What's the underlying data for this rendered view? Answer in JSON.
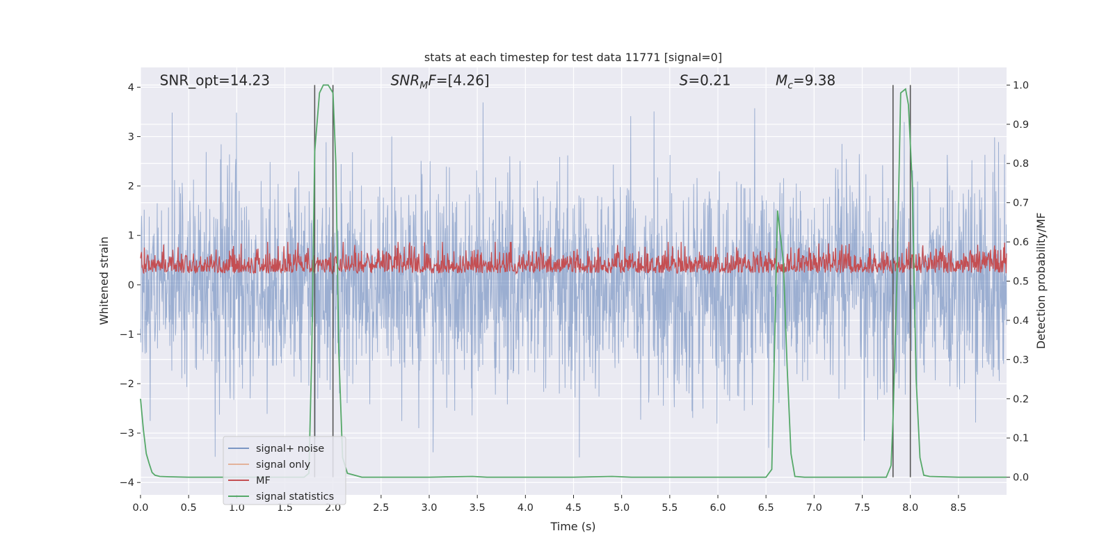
{
  "chart_data": {
    "type": "line",
    "title": "stats at each timestep for test data 11771 [signal=0]",
    "xlabel": "Time (s)",
    "ylabel": "Whitened strain",
    "ylabel_right": "Detection probability/MF",
    "xlim": [
      0.0,
      9.0
    ],
    "ylim": [
      -4.25,
      4.4
    ],
    "ylim_right": [
      -0.045,
      1.045
    ],
    "x_ticks": [
      "0.0",
      "0.5",
      "1.0",
      "1.5",
      "2.0",
      "2.5",
      "3.0",
      "3.5",
      "4.0",
      "4.5",
      "5.0",
      "5.5",
      "6.0",
      "6.5",
      "7.0",
      "7.5",
      "8.0",
      "8.5"
    ],
    "y_ticks": [
      "4",
      "3",
      "2",
      "1",
      "0",
      "−1",
      "−2",
      "−3",
      "−4"
    ],
    "y_ticks_right": [
      "1.0",
      "0.9",
      "0.8",
      "0.7",
      "0.6",
      "0.5",
      "0.4",
      "0.3",
      "0.2",
      "0.1",
      "0.0"
    ],
    "grid": true,
    "legend_position": "lower-left",
    "annotations": [
      {
        "text": "SNR_opt=14.23",
        "x": 0.2,
        "y": 4.1
      },
      {
        "pre": "SNR",
        "sub": "M",
        "post": "F=[4.26]",
        "italic": true,
        "x": 2.6,
        "y": 4.1
      },
      {
        "pre": "S",
        "post": "=0.21",
        "italic_pre": true,
        "x": 5.6,
        "y": 4.1
      },
      {
        "pre": "M",
        "sub": "c",
        "post": "=9.38",
        "italic_pre": true,
        "x": 6.6,
        "y": 4.1
      }
    ],
    "vertical_lines": [
      1.81,
      2.0,
      7.82,
      8.0
    ],
    "series": [
      {
        "name": "signal+ noise",
        "color": "#4c72b0",
        "description": "noisy whitened strain, mean ~0, amplitude ~1.2"
      },
      {
        "name": "signal only",
        "color": "#dd8452",
        "values": []
      },
      {
        "name": "MF",
        "color": "#c44e52",
        "description": "matched filter output on right axis, ~0.52 baseline with spikes to ~0.6"
      },
      {
        "name": "signal statistics",
        "color": "#55a868",
        "axis": "right",
        "x": [
          0.0,
          0.03,
          0.06,
          0.09,
          0.12,
          0.15,
          0.2,
          0.3,
          0.5,
          1.0,
          1.5,
          1.7,
          1.75,
          1.78,
          1.81,
          1.86,
          1.9,
          1.95,
          2.0,
          2.03,
          2.06,
          2.1,
          2.15,
          2.3,
          3.0,
          3.45,
          3.6,
          4.5,
          4.9,
          5.1,
          6.0,
          6.5,
          6.56,
          6.62,
          6.68,
          6.72,
          6.76,
          6.8,
          6.9,
          7.5,
          7.75,
          7.8,
          7.82,
          7.86,
          7.9,
          7.95,
          7.98,
          8.02,
          8.06,
          8.1,
          8.14,
          8.2,
          8.5,
          9.0
        ],
        "values": [
          0.2,
          0.12,
          0.06,
          0.035,
          0.012,
          0.005,
          0.002,
          0.001,
          0.0,
          0.0,
          0.0,
          0.0,
          0.01,
          0.32,
          0.83,
          0.98,
          1.0,
          1.0,
          0.98,
          0.8,
          0.32,
          0.05,
          0.01,
          0.0,
          0.0,
          0.002,
          0.0,
          0.0,
          0.002,
          0.0,
          0.0,
          0.0,
          0.02,
          0.68,
          0.55,
          0.28,
          0.06,
          0.002,
          0.0,
          0.0,
          0.0,
          0.03,
          0.15,
          0.5,
          0.98,
          0.99,
          0.95,
          0.75,
          0.25,
          0.05,
          0.005,
          0.002,
          0.0,
          0.0
        ]
      }
    ]
  }
}
